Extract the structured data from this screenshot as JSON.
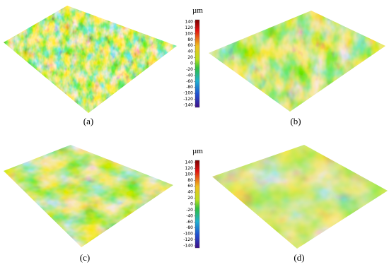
{
  "panels": [
    {
      "label": "(a)"
    },
    {
      "label": "(b)"
    },
    {
      "label": "(c)"
    },
    {
      "label": "(d)"
    }
  ],
  "colorbars": [
    {
      "unit": "µm",
      "ticks": [
        140,
        120,
        100,
        80,
        60,
        40,
        20,
        0,
        -20,
        -40,
        -60,
        -80,
        -100,
        -120,
        -140
      ]
    },
    {
      "unit": "µm",
      "ticks": [
        140,
        120,
        100,
        80,
        60,
        40,
        20,
        0,
        -20,
        -40,
        -60,
        -80,
        -100,
        -120,
        -140
      ]
    }
  ]
}
